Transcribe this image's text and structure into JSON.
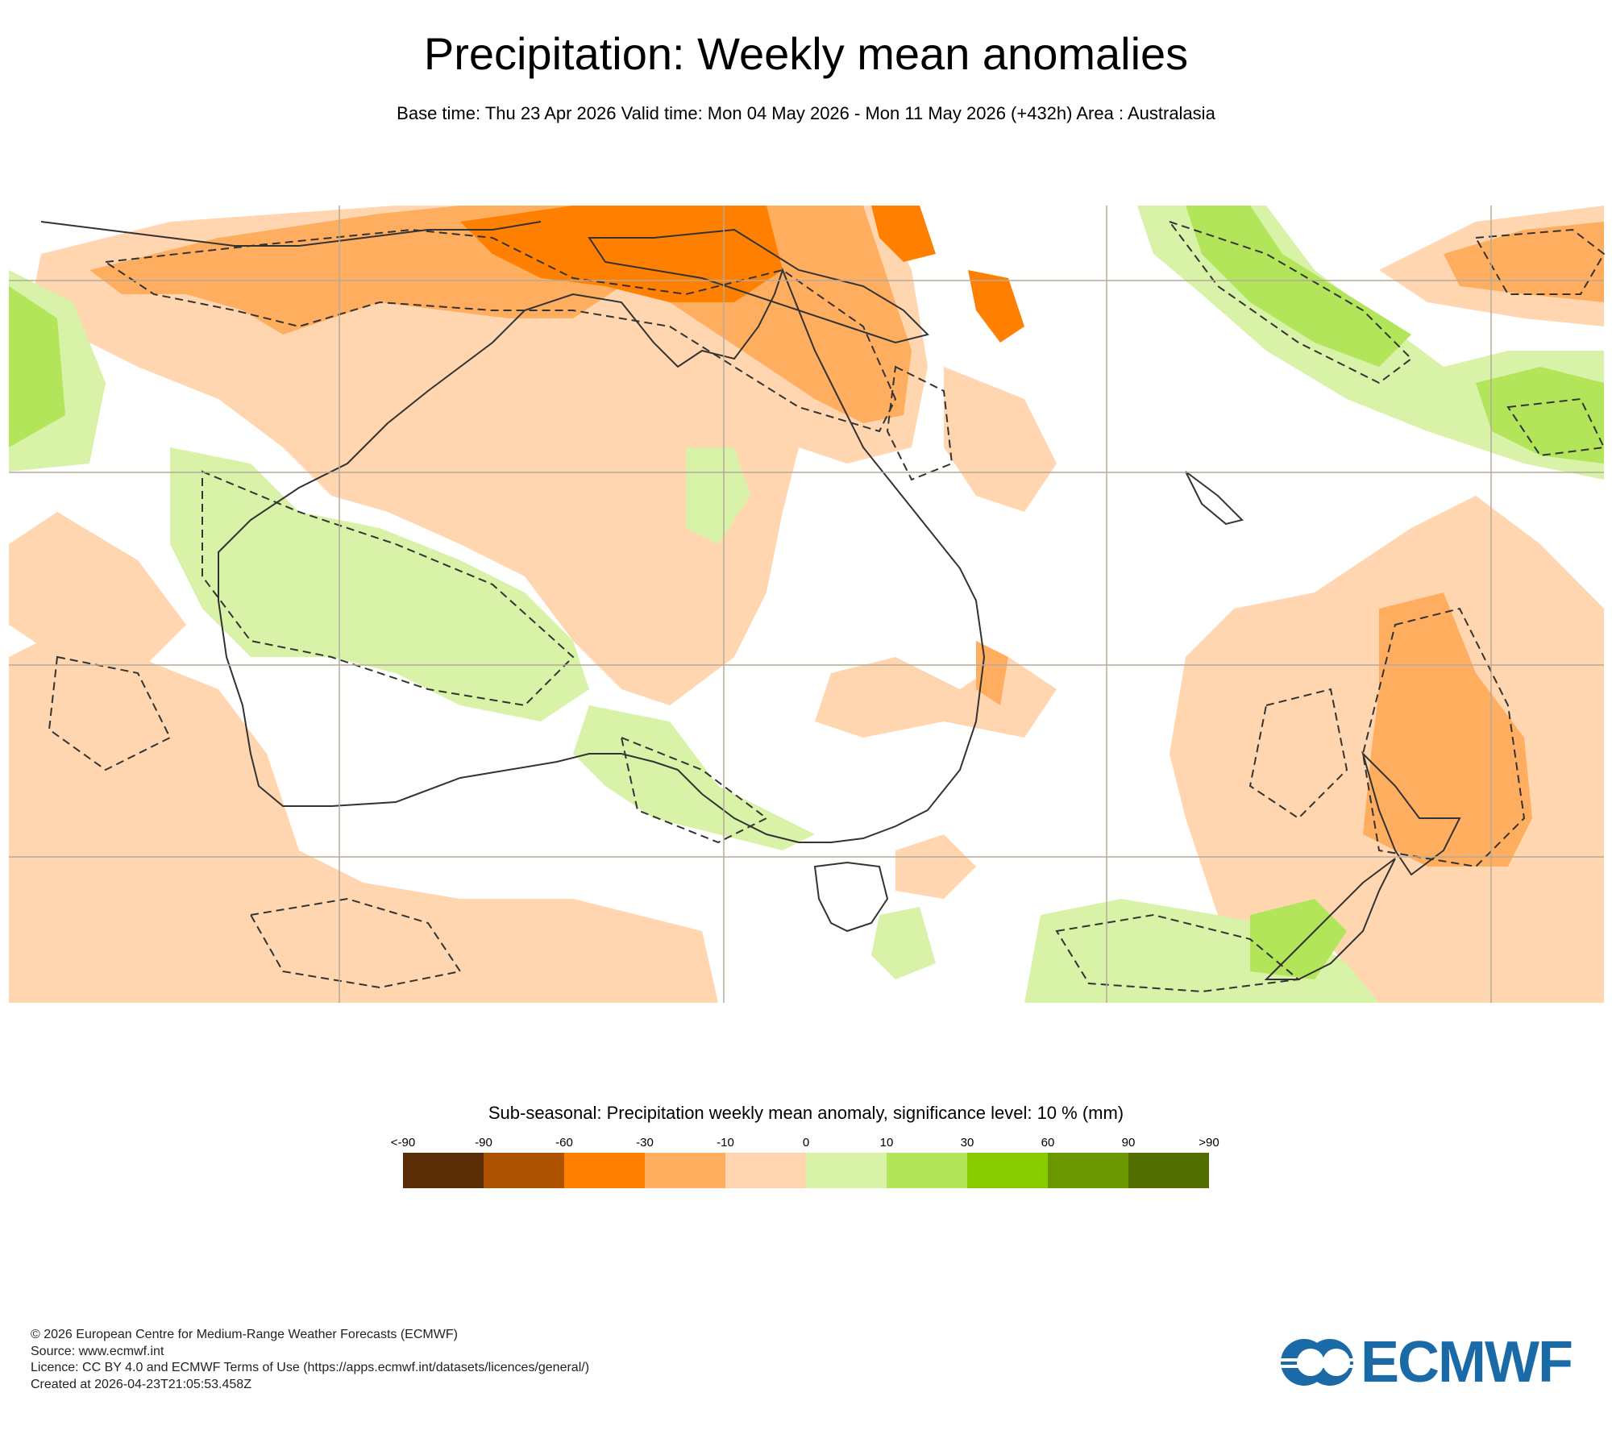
{
  "header": {
    "title": "Precipitation: Weekly mean anomalies",
    "subtitle": "Base time: Thu 23 Apr 2026 Valid time: Mon 04 May 2026 - Mon 11 May 2026 (+432h) Area : Australasia"
  },
  "legend": {
    "title": "Sub-seasonal: Precipitation weekly mean anomaly, significance level: 10 % (mm)",
    "ticks": [
      "<-90",
      "-90",
      "-60",
      "-30",
      "-10",
      "0",
      "10",
      "30",
      "60",
      "90",
      ">90"
    ],
    "colors": [
      "#5a2d06",
      "#ad5200",
      "#ff8000",
      "#ffae60",
      "#ffd6b0",
      "#d8f2a8",
      "#b2e55a",
      "#88cc00",
      "#6a9600",
      "#526d00"
    ]
  },
  "footer": {
    "line1": "© 2026 European Centre for Medium-Range Weather Forecasts (ECMWF)",
    "line2": "Source: www.ecmwf.int",
    "line3": "Licence: CC BY 4.0 and ECMWF Terms of Use (https://apps.ecmwf.int/datasets/licences/general/)",
    "line4": "Created at 2026-04-23T21:05:53.458Z"
  },
  "logo": {
    "text": "ECMWF",
    "color": "#1a6aa8"
  },
  "map": {
    "area": "Australasia",
    "land_outline_color": "#333333",
    "grid_color": "#b5aa9a"
  }
}
